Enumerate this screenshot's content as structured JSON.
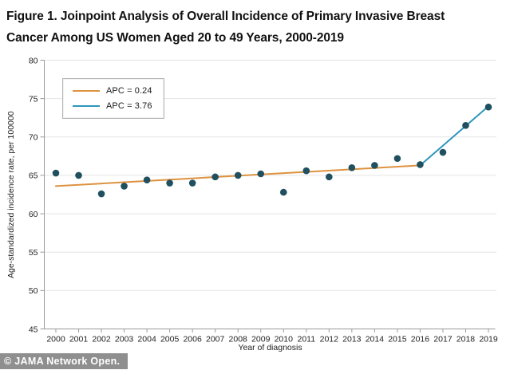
{
  "figure": {
    "title": "Figure 1.  Joinpoint Analysis of Overall Incidence of Primary Invasive Breast Cancer Among US Women Aged 20 to 49 Years, 2000-2019",
    "footer": "© JAMA Network Open."
  },
  "legend": {
    "position": "top-left",
    "items": [
      {
        "label": "APC = 0.24",
        "color": "#dd923f"
      },
      {
        "label": "APC = 3.76",
        "color": "#2e96bb"
      }
    ]
  },
  "chart_data": {
    "type": "scatter",
    "title": "Figure 1. Joinpoint Analysis of Overall Incidence of Primary Invasive Breast Cancer Among US Women Aged 20 to 49 Years, 2000-2019",
    "xlabel": "Year of diagnosis",
    "ylabel": "Age-standardized incidence rate, per 100000",
    "ylim": [
      45,
      80
    ],
    "yticks": [
      45,
      50,
      55,
      60,
      65,
      70,
      75,
      80
    ],
    "grid": true,
    "x": [
      2000,
      2001,
      2002,
      2003,
      2004,
      2005,
      2006,
      2007,
      2008,
      2009,
      2010,
      2011,
      2012,
      2013,
      2014,
      2015,
      2016,
      2017,
      2018,
      2019
    ],
    "values": [
      65.3,
      65.0,
      62.6,
      63.6,
      64.4,
      64.0,
      64.0,
      64.8,
      65.0,
      65.2,
      62.8,
      65.6,
      64.8,
      66.0,
      66.3,
      67.2,
      66.4,
      68.0,
      71.5,
      73.9
    ],
    "point_color": "#20505f",
    "series": [
      {
        "name": "APC = 0.24",
        "type": "trend-line",
        "color": "#dd923f",
        "points": [
          [
            2000,
            63.6
          ],
          [
            2016,
            66.3
          ]
        ]
      },
      {
        "name": "APC = 3.76",
        "type": "trend-line",
        "color": "#2e96bb",
        "points": [
          [
            2016,
            66.3
          ],
          [
            2019,
            74.0
          ]
        ]
      }
    ]
  }
}
